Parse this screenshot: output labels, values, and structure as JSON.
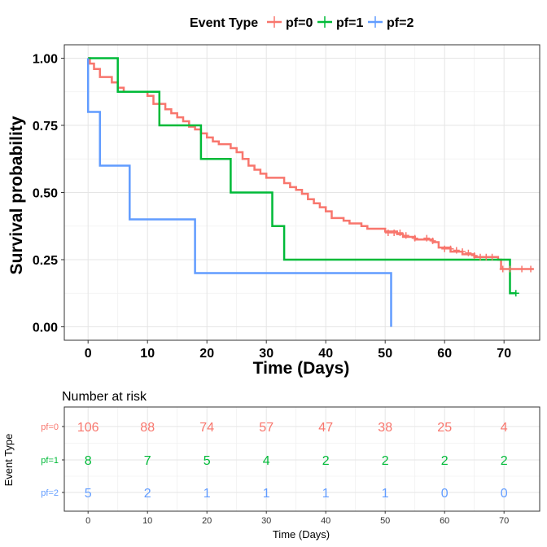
{
  "chart_data": [
    {
      "type": "line",
      "subtype": "kaplan-meier step curve",
      "ylabel": "Survival probability",
      "xlabel": "Time (Days)",
      "xlim": [
        -4,
        76
      ],
      "ylim": [
        -0.05,
        1.05
      ],
      "x_ticks": [
        0,
        10,
        20,
        30,
        40,
        50,
        60,
        70
      ],
      "y_ticks": [
        0.0,
        0.25,
        0.5,
        0.75,
        1.0
      ],
      "y_tick_labels": [
        "0.00",
        "0.25",
        "0.50",
        "0.75",
        "1.00"
      ],
      "legend": {
        "title": "Event Type",
        "position": "top"
      },
      "grid": true,
      "series": [
        {
          "name": "pf=0",
          "color": "#F8766D",
          "steps": [
            [
              0,
              1.0
            ],
            [
              0.3,
              0.98
            ],
            [
              1,
              0.96
            ],
            [
              2,
              0.93
            ],
            [
              4,
              0.91
            ],
            [
              5,
              0.89
            ],
            [
              6,
              0.875
            ],
            [
              10,
              0.86
            ],
            [
              11,
              0.83
            ],
            [
              13,
              0.81
            ],
            [
              14,
              0.795
            ],
            [
              15,
              0.78
            ],
            [
              16,
              0.765
            ],
            [
              17,
              0.745
            ],
            [
              18,
              0.735
            ],
            [
              19,
              0.72
            ],
            [
              20,
              0.705
            ],
            [
              21,
              0.69
            ],
            [
              22,
              0.68
            ],
            [
              24,
              0.665
            ],
            [
              25,
              0.65
            ],
            [
              26,
              0.625
            ],
            [
              27,
              0.6
            ],
            [
              28,
              0.585
            ],
            [
              29,
              0.57
            ],
            [
              30,
              0.555
            ],
            [
              33,
              0.535
            ],
            [
              34,
              0.52
            ],
            [
              35,
              0.51
            ],
            [
              36,
              0.495
            ],
            [
              37,
              0.475
            ],
            [
              38,
              0.46
            ],
            [
              39,
              0.445
            ],
            [
              40,
              0.43
            ],
            [
              41,
              0.405
            ],
            [
              43,
              0.395
            ],
            [
              44,
              0.385
            ],
            [
              46,
              0.375
            ],
            [
              47,
              0.365
            ],
            [
              50,
              0.355
            ],
            [
              52,
              0.345
            ],
            [
              53,
              0.335
            ],
            [
              55,
              0.325
            ],
            [
              58,
              0.315
            ],
            [
              59,
              0.295
            ],
            [
              61,
              0.28
            ],
            [
              63,
              0.27
            ],
            [
              65,
              0.26
            ],
            [
              69,
              0.25
            ],
            [
              69.5,
              0.215
            ],
            [
              75,
              0.215
            ]
          ],
          "censored": [
            [
              50.5,
              0.35
            ],
            [
              51.5,
              0.35
            ],
            [
              52.5,
              0.35
            ],
            [
              53.5,
              0.34
            ],
            [
              55,
              0.33
            ],
            [
              57,
              0.33
            ],
            [
              58,
              0.32
            ],
            [
              60,
              0.29
            ],
            [
              61,
              0.29
            ],
            [
              62,
              0.285
            ],
            [
              63,
              0.28
            ],
            [
              64,
              0.275
            ],
            [
              65,
              0.265
            ],
            [
              66,
              0.26
            ],
            [
              67,
              0.26
            ],
            [
              68,
              0.26
            ],
            [
              69.8,
              0.215
            ],
            [
              71,
              0.215
            ],
            [
              73,
              0.215
            ],
            [
              74.5,
              0.215
            ]
          ]
        },
        {
          "name": "pf=1",
          "color": "#00BA38",
          "steps": [
            [
              0,
              1.0
            ],
            [
              5,
              0.875
            ],
            [
              12,
              0.75
            ],
            [
              19,
              0.625
            ],
            [
              24,
              0.5
            ],
            [
              31,
              0.375
            ],
            [
              33,
              0.25
            ],
            [
              71,
              0.125
            ],
            [
              72,
              0.125
            ]
          ],
          "censored": [
            [
              72,
              0.125
            ]
          ]
        },
        {
          "name": "pf=2",
          "color": "#619CFF",
          "steps": [
            [
              0,
              1.0
            ],
            [
              0,
              0.8
            ],
            [
              2,
              0.6
            ],
            [
              7,
              0.4
            ],
            [
              18,
              0.2
            ],
            [
              51,
              0.0
            ]
          ],
          "censored": []
        }
      ]
    },
    {
      "type": "table",
      "title": "Number at risk",
      "xlabel": "Time (Days)",
      "ylabel": "Event Type",
      "x_ticks": [
        0,
        10,
        20,
        30,
        40,
        50,
        60,
        70
      ],
      "rows": [
        {
          "name": "pf=0",
          "color": "#F8766D",
          "values": [
            106,
            88,
            74,
            57,
            47,
            38,
            25,
            4
          ]
        },
        {
          "name": "pf=1",
          "color": "#00BA38",
          "values": [
            8,
            7,
            5,
            4,
            2,
            2,
            2,
            2
          ]
        },
        {
          "name": "pf=2",
          "color": "#619CFF",
          "values": [
            5,
            2,
            1,
            1,
            1,
            1,
            0,
            0
          ]
        }
      ]
    }
  ]
}
